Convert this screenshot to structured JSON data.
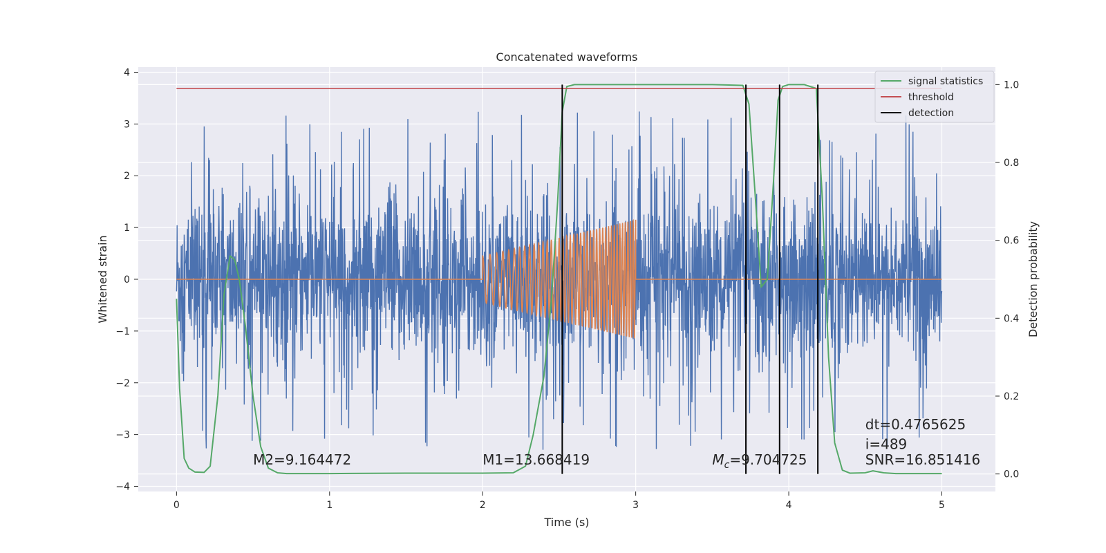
{
  "chart_data": {
    "type": "line",
    "title": "Concatenated waveforms",
    "xlabel": "Time (s)",
    "ylabel": "Whitened strain",
    "y2label": "Detection probability",
    "xlim": [
      -0.25,
      5.35
    ],
    "ylim": [
      -4.1,
      4.1
    ],
    "y2lim": [
      -0.045,
      1.045
    ],
    "xticks": [
      0,
      1,
      2,
      3,
      4,
      5
    ],
    "xtick_labels": [
      "0",
      "1",
      "2",
      "3",
      "4",
      "5"
    ],
    "yticks": [
      -4,
      -3,
      -2,
      -1,
      0,
      1,
      2,
      3,
      4
    ],
    "ytick_labels": [
      "−4",
      "−3",
      "−2",
      "−1",
      "0",
      "1",
      "2",
      "3",
      "4"
    ],
    "y2ticks": [
      0.0,
      0.2,
      0.4,
      0.6,
      0.8,
      1.0
    ],
    "y2tick_labels": [
      "0.0",
      "0.2",
      "0.4",
      "0.6",
      "0.8",
      "1.0"
    ],
    "grid": true,
    "legend_position": "top-right",
    "colors": {
      "strain": "#4c72b0",
      "template": "#dd8452",
      "signal_statistics": "#55a868",
      "threshold": "#c44e52",
      "detection": "#000000",
      "background": "#eaeaf2",
      "grid": "#ffffff"
    },
    "strain": {
      "name": "whitened strain",
      "t_start": 0.0,
      "t_end": 5.0,
      "sigma": 0.75,
      "peak_max": 3.75,
      "peak_min": -3.75
    },
    "template": {
      "name": "template",
      "t_start": 2.0,
      "t_end": 3.0,
      "amp_start": 0.45,
      "amp_end": 1.15,
      "freq_start_hz": 20,
      "freq_end_hz": 60,
      "baseline": 0.0
    },
    "signal_statistics": {
      "name": "signal statistics",
      "x": [
        0.0,
        0.02,
        0.05,
        0.08,
        0.12,
        0.18,
        0.22,
        0.27,
        0.31,
        0.35,
        0.38,
        0.41,
        0.45,
        0.5,
        0.55,
        0.6,
        0.66,
        0.72,
        0.8,
        1.0,
        1.5,
        2.0,
        2.2,
        2.28,
        2.33,
        2.4,
        2.45,
        2.49,
        2.52,
        2.55,
        2.6,
        3.0,
        3.5,
        3.7,
        3.74,
        3.78,
        3.82,
        3.86,
        3.9,
        3.93,
        3.96,
        4.0,
        4.1,
        4.18,
        4.22,
        4.26,
        4.3,
        4.35,
        4.4,
        4.5,
        4.55,
        4.62,
        4.7,
        4.8,
        5.0
      ],
      "values": [
        0.45,
        0.22,
        0.04,
        0.015,
        0.005,
        0.004,
        0.02,
        0.2,
        0.46,
        0.56,
        0.55,
        0.5,
        0.38,
        0.2,
        0.07,
        0.015,
        0.003,
        0.001,
        0.001,
        0.001,
        0.002,
        0.002,
        0.003,
        0.02,
        0.1,
        0.25,
        0.45,
        0.7,
        0.93,
        0.995,
        1.0,
        1.0,
        1.0,
        0.998,
        0.95,
        0.72,
        0.48,
        0.5,
        0.75,
        0.96,
        0.995,
        1.0,
        1.0,
        0.99,
        0.7,
        0.3,
        0.08,
        0.01,
        0.002,
        0.003,
        0.008,
        0.003,
        0.001,
        0.001,
        0.001
      ]
    },
    "threshold": {
      "name": "threshold",
      "x": [
        0.0,
        5.0
      ],
      "values": [
        0.99,
        0.99
      ]
    },
    "detection": {
      "name": "detection",
      "x": [
        2.52,
        3.72,
        3.94,
        4.19
      ],
      "y2_range": [
        0.0,
        1.0
      ]
    },
    "legend": [
      {
        "label": "signal statistics",
        "color": "#55a868"
      },
      {
        "label": "threshold",
        "color": "#c44e52"
      },
      {
        "label": "detection",
        "color": "#000000"
      }
    ],
    "annotations": [
      {
        "text": "M2=9.164472",
        "x": 0.5,
        "y": -3.58
      },
      {
        "text": "M1=13.668419",
        "x": 2.0,
        "y": -3.58
      },
      {
        "prefix": "M",
        "subscript": "c",
        "text": "=9.704725",
        "x": 3.5,
        "y": -3.58
      },
      {
        "text": "dt=0.4765625",
        "x": 4.5,
        "y": -2.9
      },
      {
        "text": " i=489",
        "x": 4.5,
        "y": -3.28
      },
      {
        "text": "SNR=16.851416",
        "x": 4.5,
        "y": -3.58
      }
    ]
  }
}
